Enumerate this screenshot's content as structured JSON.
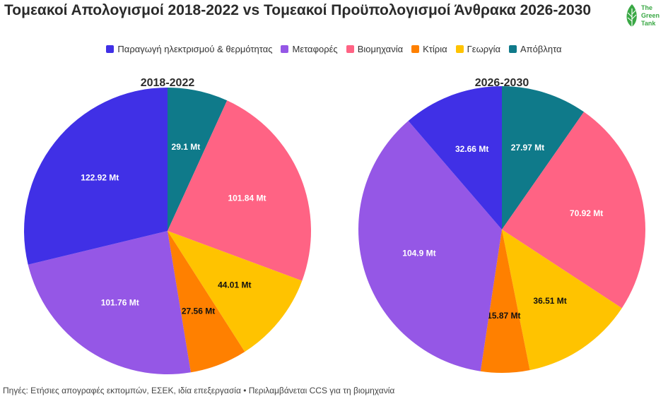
{
  "title": "Τομεακοί Απολογισμοί 2018-2022 vs Τομεακοί Προϋπολογισμοί Άνθρακα 2026-2030",
  "logo": {
    "line1": "The",
    "line2": "Green",
    "line3": "Tank"
  },
  "legend": [
    {
      "label": "Παραγωγή ηλεκτρισμού & θερμότητας",
      "color": "#4030e6"
    },
    {
      "label": "Μεταφορές",
      "color": "#9557e6"
    },
    {
      "label": "Βιομηχανία",
      "color": "#ff6384"
    },
    {
      "label": "Κτίρια",
      "color": "#ff8000"
    },
    {
      "label": "Γεωργία",
      "color": "#ffc300"
    },
    {
      "label": "Απόβλητα",
      "color": "#0f7a8a"
    }
  ],
  "footer": "Πηγές: Ετήσιες απογραφές εκπομπών, ΕΣΕΚ, ιδία επεξεργασία • Περιλαμβάνεται CCS για τη βιομηχανία",
  "chart_data": [
    {
      "type": "pie",
      "title": "2018-2022",
      "slices": [
        {
          "label": "Απόβλητα",
          "value": 29.1,
          "display": "29.1 Mt",
          "color": "#0f7a8a",
          "text_color": "#ffffff"
        },
        {
          "label": "Βιομηχανία",
          "value": 101.84,
          "display": "101.84 Mt",
          "color": "#ff6384",
          "text_color": "#ffffff"
        },
        {
          "label": "Γεωργία",
          "value": 44.01,
          "display": "44.01 Mt",
          "color": "#ffc300",
          "text_color": "#111111"
        },
        {
          "label": "Κτίρια",
          "value": 27.56,
          "display": "27.56 Mt",
          "color": "#ff8000",
          "text_color": "#111111"
        },
        {
          "label": "Μεταφορές",
          "value": 101.76,
          "display": "101.76 Mt",
          "color": "#9557e6",
          "text_color": "#ffffff"
        },
        {
          "label": "Παραγωγή ηλεκτρισμού & θερμότητας",
          "value": 122.92,
          "display": "122.92 Mt",
          "color": "#4030e6",
          "text_color": "#ffffff"
        }
      ]
    },
    {
      "type": "pie",
      "title": "2026-2030",
      "slices": [
        {
          "label": "Απόβλητα",
          "value": 27.97,
          "display": "27.97 Mt",
          "color": "#0f7a8a",
          "text_color": "#ffffff"
        },
        {
          "label": "Βιομηχανία",
          "value": 70.92,
          "display": "70.92 Mt",
          "color": "#ff6384",
          "text_color": "#ffffff"
        },
        {
          "label": "Γεωργία",
          "value": 36.51,
          "display": "36.51 Mt",
          "color": "#ffc300",
          "text_color": "#111111"
        },
        {
          "label": "Κτίρια",
          "value": 15.87,
          "display": "15.87 Mt",
          "color": "#ff8000",
          "text_color": "#111111"
        },
        {
          "label": "Μεταφορές",
          "value": 104.9,
          "display": "104.9 Mt",
          "color": "#9557e6",
          "text_color": "#ffffff"
        },
        {
          "label": "Παραγωγή ηλεκτρισμού & θερμότητας",
          "value": 32.66,
          "display": "32.66 Mt",
          "color": "#4030e6",
          "text_color": "#ffffff"
        }
      ]
    }
  ]
}
